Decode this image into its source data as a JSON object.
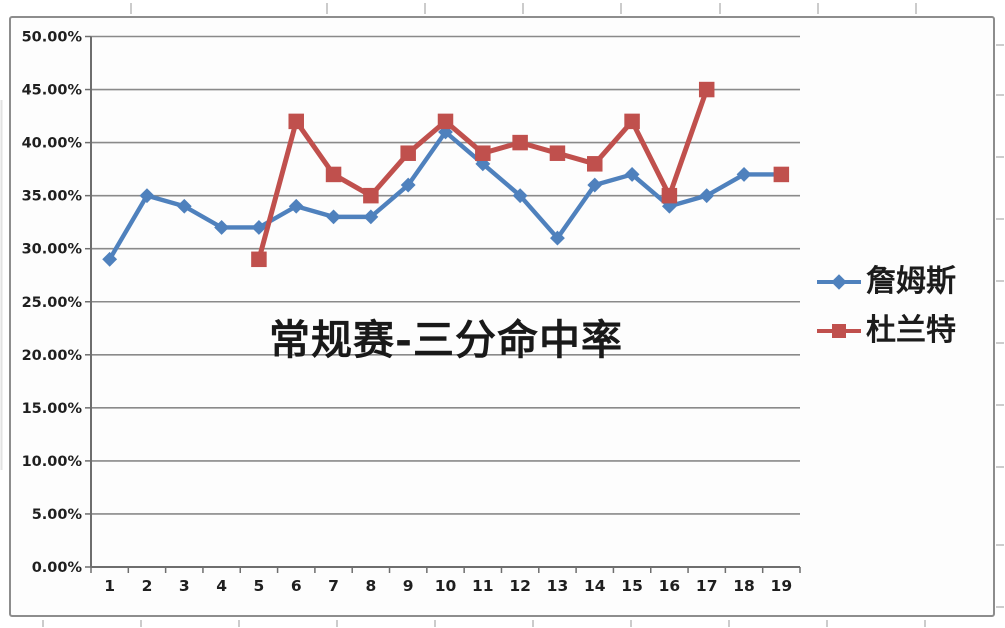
{
  "chart_data": {
    "type": "line",
    "title": "常规赛-三分命中率",
    "xlabel": "",
    "ylabel": "",
    "units": "percent",
    "categories": [
      "1",
      "2",
      "3",
      "4",
      "5",
      "6",
      "7",
      "8",
      "9",
      "10",
      "11",
      "12",
      "13",
      "14",
      "15",
      "16",
      "17",
      "18",
      "19"
    ],
    "series": [
      {
        "name": "詹姆斯",
        "color": "#4F81BD",
        "marker": "diamond",
        "values": [
          29,
          35,
          34,
          32,
          32,
          34,
          33,
          33,
          36,
          41,
          38,
          35,
          31,
          36,
          37,
          34,
          35,
          37,
          37
        ]
      },
      {
        "name": "杜兰特",
        "color": "#C0504D",
        "marker": "square",
        "values": [
          null,
          null,
          null,
          null,
          29,
          42,
          37,
          35,
          39,
          42,
          39,
          40,
          39,
          38,
          42,
          35,
          45,
          null,
          37
        ]
      }
    ],
    "ylim": [
      0,
      50
    ],
    "ytick_step": 5,
    "ytick_labels": [
      "0.00%",
      "5.00%",
      "10.00%",
      "15.00%",
      "20.00%",
      "25.00%",
      "30.00%",
      "35.00%",
      "40.00%",
      "45.00%",
      "50.00%"
    ],
    "grid": true,
    "legend_position": "right",
    "colors": {
      "gridline": "#8a8a8a",
      "axis": "#6e6e6e",
      "tick_text": "#1f1f1f",
      "frame_border": "#8d8d8d",
      "outer_tick": "#cccccc"
    }
  }
}
